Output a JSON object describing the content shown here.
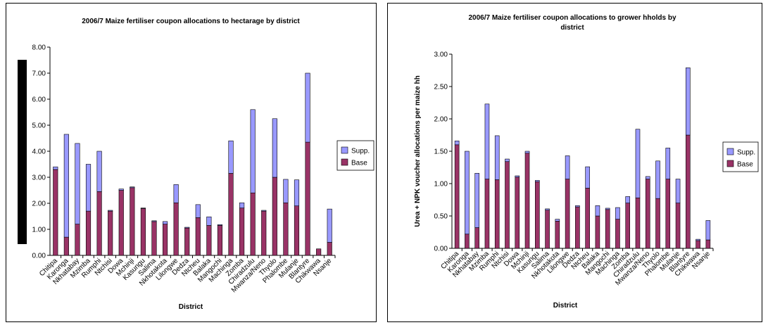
{
  "chart_data": [
    {
      "type": "bar",
      "stacked": true,
      "title": "2006/7 Maize fertiliser coupon allocations to hectarage by district",
      "title_lines": [
        "2006/7 Maize fertiliser coupon allocations to hectarage by district"
      ],
      "xlabel": "District",
      "ylabel": "",
      "ylim": [
        0,
        8
      ],
      "yticks": [
        "0.00",
        "1.00",
        "2.00",
        "3.00",
        "4.00",
        "5.00",
        "6.00",
        "7.00",
        "8.00"
      ],
      "categories": [
        "Chitipa",
        "Karonga",
        "Nkhatabay",
        "Mzimba",
        "Rumphi",
        "Ntchisi",
        "Dowa",
        "Mchinji",
        "Kasungu",
        "Salima",
        "Nkhotakota",
        "Lilongwe",
        "Dedza",
        "Ntcheu",
        "Balaka",
        "Mangochi",
        "Machinga",
        "Zomba",
        "Chiradzulu",
        "Mwanza/Neno",
        "Thyolo",
        "Phalombe",
        "Mulanje",
        "Blantyre",
        "Chikwawa",
        "Nsanje"
      ],
      "series": [
        {
          "name": "Base",
          "color": "#993366",
          "values": [
            3.3,
            0.7,
            1.2,
            1.7,
            2.45,
            1.7,
            2.5,
            2.6,
            1.8,
            1.3,
            1.2,
            2.02,
            1.05,
            1.45,
            1.15,
            1.15,
            3.15,
            1.82,
            2.4,
            1.7,
            3.0,
            2.02,
            1.9,
            4.35,
            0.25,
            0.5
          ]
        },
        {
          "name": "Supp.",
          "color": "#9999FF",
          "values": [
            0.1,
            3.95,
            3.1,
            1.8,
            1.55,
            0.03,
            0.05,
            0.03,
            0.02,
            0.03,
            0.1,
            0.7,
            0.03,
            0.5,
            0.33,
            0.03,
            1.25,
            0.2,
            3.2,
            0.03,
            2.25,
            0.9,
            1.0,
            2.65,
            0.0,
            1.28
          ]
        }
      ],
      "legend": "right",
      "grid": false
    },
    {
      "type": "bar",
      "stacked": true,
      "title": "2006/7 Maize fertiliser coupon allocations to grower hholds by district",
      "title_lines": [
        "2006/7 Maize fertiliser coupon allocations to grower hholds by",
        "district"
      ],
      "xlabel": "District",
      "ylabel": "Urea + NPK voucher allocations per maize hh",
      "ylim": [
        0,
        3
      ],
      "yticks": [
        "0.00",
        "0.50",
        "1.00",
        "1.50",
        "2.00",
        "2.50",
        "3.00"
      ],
      "categories": [
        "Chitipa",
        "Karonga",
        "Nkhatabay",
        "Mzimba",
        "Rumphi",
        "Ntchisi",
        "Dowa",
        "Mchinji",
        "Kasungu",
        "Salima",
        "Nkhotakota",
        "Lilongwe",
        "Dedza",
        "Ntcheu",
        "Balaka",
        "Mangochi",
        "Machinga",
        "Zomba",
        "Chiradzulu",
        "Mwanza/Neno",
        "Thyolo",
        "Phalombe",
        "Mulanje",
        "Blantyre",
        "Chikwawa",
        "Nsanje"
      ],
      "series": [
        {
          "name": "Base",
          "color": "#993366",
          "values": [
            1.6,
            0.22,
            0.32,
            1.07,
            1.06,
            1.34,
            1.1,
            1.47,
            1.03,
            0.59,
            0.42,
            1.07,
            0.64,
            0.93,
            0.5,
            0.6,
            0.45,
            0.7,
            0.78,
            1.07,
            0.77,
            1.07,
            0.7,
            1.75,
            0.12,
            0.13
          ]
        },
        {
          "name": "Supp.",
          "color": "#9999FF",
          "values": [
            0.06,
            1.28,
            0.84,
            1.16,
            0.68,
            0.04,
            0.02,
            0.03,
            0.02,
            0.02,
            0.03,
            0.36,
            0.02,
            0.33,
            0.16,
            0.02,
            0.18,
            0.1,
            1.06,
            0.04,
            0.58,
            0.48,
            0.37,
            1.04,
            0.02,
            0.3
          ]
        }
      ],
      "legend": "right",
      "grid": false
    }
  ]
}
